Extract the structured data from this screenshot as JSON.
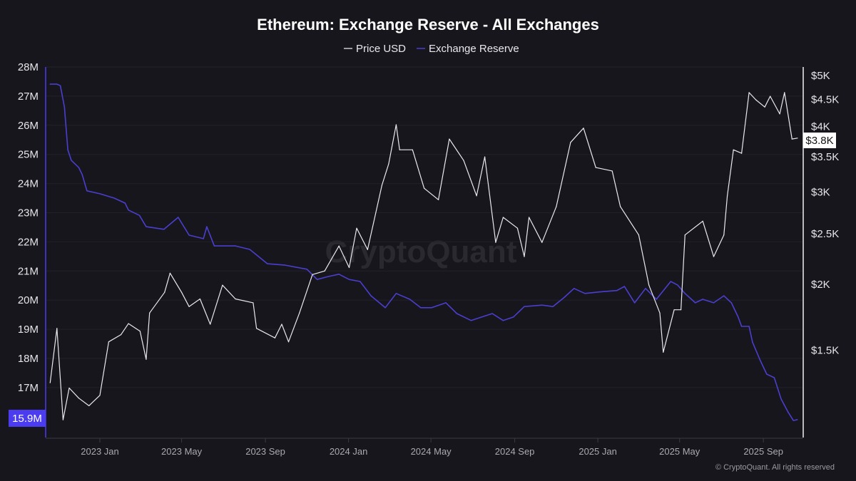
{
  "chart_data": {
    "type": "line",
    "title": "Ethereum: Exchange Reserve - All Exchanges",
    "watermark": "CryptoQuant",
    "footer": "© CryptoQuant. All rights reserved",
    "legend_position": "top-center",
    "grid": true,
    "x_ticks": [
      "2023 Jan",
      "2023 May",
      "2023 Sep",
      "2024 Jan",
      "2024 May",
      "2024 Sep",
      "2025 Jan",
      "2025 May",
      "2025 Sep"
    ],
    "x_tick_dates": [
      "2023-01-01",
      "2023-05-01",
      "2023-09-01",
      "2024-01-01",
      "2024-05-01",
      "2024-09-01",
      "2025-01-01",
      "2025-05-01",
      "2025-09-01"
    ],
    "left_axis": {
      "scale": "linear",
      "range": [
        15.3,
        28
      ],
      "ticks": [
        28,
        27,
        26,
        25,
        24,
        23,
        22,
        21,
        20,
        19,
        18,
        17
      ],
      "tick_labels": [
        "28M",
        "27M",
        "26M",
        "25M",
        "24M",
        "23M",
        "22M",
        "21M",
        "20M",
        "19M",
        "18M",
        "17M"
      ],
      "current_label": "15.9M",
      "current_value": 15.9
    },
    "right_axis": {
      "scale": "log",
      "range": [
        1030,
        5200
      ],
      "ticks": [
        5000,
        4500,
        4000,
        3500,
        3000,
        2500,
        2000,
        1500
      ],
      "tick_labels": [
        "$5K",
        "$4.5K",
        "$4K",
        "$3.5K",
        "$3K",
        "$2.5K",
        "$2K",
        "$1.5K"
      ],
      "current_label": "$3.8K",
      "current_value": 3800
    },
    "colors": {
      "background": "#17161c",
      "price": "#e9e9ee",
      "reserve": "#4a3fd0",
      "reserve_badge": "#4b3cf0"
    },
    "series": [
      {
        "name": "Price USD",
        "axis": "right",
        "points": [
          [
            "2022-10-20",
            1300
          ],
          [
            "2022-10-30",
            1650
          ],
          [
            "2022-11-08",
            1105
          ],
          [
            "2022-11-17",
            1270
          ],
          [
            "2022-12-01",
            1215
          ],
          [
            "2022-12-16",
            1175
          ],
          [
            "2023-01-01",
            1230
          ],
          [
            "2023-01-14",
            1555
          ],
          [
            "2023-02-01",
            1605
          ],
          [
            "2023-02-12",
            1685
          ],
          [
            "2023-03-01",
            1630
          ],
          [
            "2023-03-10",
            1440
          ],
          [
            "2023-03-15",
            1765
          ],
          [
            "2023-04-06",
            1932
          ],
          [
            "2023-04-14",
            2102
          ],
          [
            "2023-05-01",
            1932
          ],
          [
            "2023-05-12",
            1815
          ],
          [
            "2023-05-28",
            1877
          ],
          [
            "2023-06-12",
            1680
          ],
          [
            "2023-06-30",
            1994
          ],
          [
            "2023-07-19",
            1877
          ],
          [
            "2023-08-14",
            1846
          ],
          [
            "2023-08-19",
            1650
          ],
          [
            "2023-09-15",
            1582
          ],
          [
            "2023-09-25",
            1680
          ],
          [
            "2023-10-05",
            1555
          ],
          [
            "2023-10-21",
            1765
          ],
          [
            "2023-11-09",
            2089
          ],
          [
            "2023-11-27",
            2122
          ],
          [
            "2023-12-18",
            2368
          ],
          [
            "2024-01-02",
            2154
          ],
          [
            "2024-01-13",
            2560
          ],
          [
            "2024-01-29",
            2330
          ],
          [
            "2024-02-19",
            3090
          ],
          [
            "2024-02-29",
            3395
          ],
          [
            "2024-03-11",
            4030
          ],
          [
            "2024-03-16",
            3610
          ],
          [
            "2024-04-04",
            3610
          ],
          [
            "2024-04-21",
            3050
          ],
          [
            "2024-05-12",
            2900
          ],
          [
            "2024-05-28",
            3785
          ],
          [
            "2024-06-18",
            3445
          ],
          [
            "2024-07-07",
            2950
          ],
          [
            "2024-07-19",
            3500
          ],
          [
            "2024-08-04",
            2405
          ],
          [
            "2024-08-15",
            2685
          ],
          [
            "2024-09-05",
            2560
          ],
          [
            "2024-09-15",
            2260
          ],
          [
            "2024-09-22",
            2685
          ],
          [
            "2024-10-11",
            2405
          ],
          [
            "2024-11-01",
            2815
          ],
          [
            "2024-11-22",
            3730
          ],
          [
            "2024-12-11",
            3970
          ],
          [
            "2024-12-29",
            3340
          ],
          [
            "2025-01-22",
            3290
          ],
          [
            "2025-02-03",
            2815
          ],
          [
            "2025-03-02",
            2485
          ],
          [
            "2025-03-17",
            1994
          ],
          [
            "2025-04-02",
            1765
          ],
          [
            "2025-04-07",
            1486
          ],
          [
            "2025-04-23",
            1790
          ],
          [
            "2025-05-03",
            1790
          ],
          [
            "2025-05-09",
            2485
          ],
          [
            "2025-06-04",
            2640
          ],
          [
            "2025-06-20",
            2260
          ],
          [
            "2025-07-05",
            2485
          ],
          [
            "2025-07-10",
            2950
          ],
          [
            "2025-07-19",
            3610
          ],
          [
            "2025-07-31",
            3555
          ],
          [
            "2025-08-11",
            4640
          ],
          [
            "2025-08-21",
            4495
          ],
          [
            "2025-09-03",
            4355
          ],
          [
            "2025-09-11",
            4565
          ],
          [
            "2025-09-25",
            4225
          ],
          [
            "2025-10-02",
            4640
          ],
          [
            "2025-10-13",
            3785
          ],
          [
            "2025-10-21",
            3800
          ]
        ]
      },
      {
        "name": "Exchange Reserve",
        "axis": "left",
        "unit": "M",
        "points": [
          [
            "2022-10-20",
            27.41
          ],
          [
            "2022-10-30",
            27.41
          ],
          [
            "2022-11-04",
            27.36
          ],
          [
            "2022-11-10",
            26.63
          ],
          [
            "2022-11-15",
            25.16
          ],
          [
            "2022-11-20",
            24.8
          ],
          [
            "2022-12-01",
            24.55
          ],
          [
            "2022-12-06",
            24.31
          ],
          [
            "2022-12-13",
            23.75
          ],
          [
            "2023-01-01",
            23.65
          ],
          [
            "2023-01-22",
            23.5
          ],
          [
            "2023-02-07",
            23.33
          ],
          [
            "2023-02-12",
            23.09
          ],
          [
            "2023-02-28",
            22.91
          ],
          [
            "2023-03-10",
            22.52
          ],
          [
            "2023-04-05",
            22.43
          ],
          [
            "2023-04-26",
            22.84
          ],
          [
            "2023-05-12",
            22.23
          ],
          [
            "2023-06-02",
            22.11
          ],
          [
            "2023-06-07",
            22.52
          ],
          [
            "2023-06-18",
            21.86
          ],
          [
            "2023-07-19",
            21.86
          ],
          [
            "2023-08-09",
            21.74
          ],
          [
            "2023-09-04",
            21.25
          ],
          [
            "2023-09-30",
            21.2
          ],
          [
            "2023-11-01",
            21.06
          ],
          [
            "2023-11-16",
            20.71
          ],
          [
            "2023-12-02",
            20.81
          ],
          [
            "2023-12-18",
            20.89
          ],
          [
            "2024-01-02",
            20.71
          ],
          [
            "2024-01-18",
            20.64
          ],
          [
            "2024-02-03",
            20.15
          ],
          [
            "2024-02-24",
            19.74
          ],
          [
            "2024-03-11",
            20.23
          ],
          [
            "2024-03-31",
            20.03
          ],
          [
            "2024-04-16",
            19.74
          ],
          [
            "2024-05-02",
            19.74
          ],
          [
            "2024-05-23",
            19.91
          ],
          [
            "2024-06-08",
            19.54
          ],
          [
            "2024-06-29",
            19.3
          ],
          [
            "2024-07-30",
            19.54
          ],
          [
            "2024-08-15",
            19.3
          ],
          [
            "2024-08-30",
            19.42
          ],
          [
            "2024-09-15",
            19.78
          ],
          [
            "2024-10-11",
            19.83
          ],
          [
            "2024-10-27",
            19.78
          ],
          [
            "2024-11-12",
            20.08
          ],
          [
            "2024-11-27",
            20.4
          ],
          [
            "2024-12-13",
            20.23
          ],
          [
            "2025-01-03",
            20.28
          ],
          [
            "2025-01-29",
            20.33
          ],
          [
            "2025-02-09",
            20.47
          ],
          [
            "2025-02-24",
            19.91
          ],
          [
            "2025-03-12",
            20.4
          ],
          [
            "2025-03-28",
            20.03
          ],
          [
            "2025-04-18",
            20.64
          ],
          [
            "2025-04-28",
            20.52
          ],
          [
            "2025-05-09",
            20.23
          ],
          [
            "2025-05-24",
            19.91
          ],
          [
            "2025-06-04",
            20.03
          ],
          [
            "2025-06-20",
            19.91
          ],
          [
            "2025-07-05",
            20.15
          ],
          [
            "2025-07-16",
            19.91
          ],
          [
            "2025-07-26",
            19.42
          ],
          [
            "2025-07-31",
            19.1
          ],
          [
            "2025-08-11",
            19.1
          ],
          [
            "2025-08-16",
            18.56
          ],
          [
            "2025-08-27",
            17.95
          ],
          [
            "2025-09-06",
            17.46
          ],
          [
            "2025-09-17",
            17.34
          ],
          [
            "2025-09-27",
            16.61
          ],
          [
            "2025-10-07",
            16.17
          ],
          [
            "2025-10-15",
            15.87
          ],
          [
            "2025-10-21",
            15.9
          ]
        ]
      }
    ]
  }
}
